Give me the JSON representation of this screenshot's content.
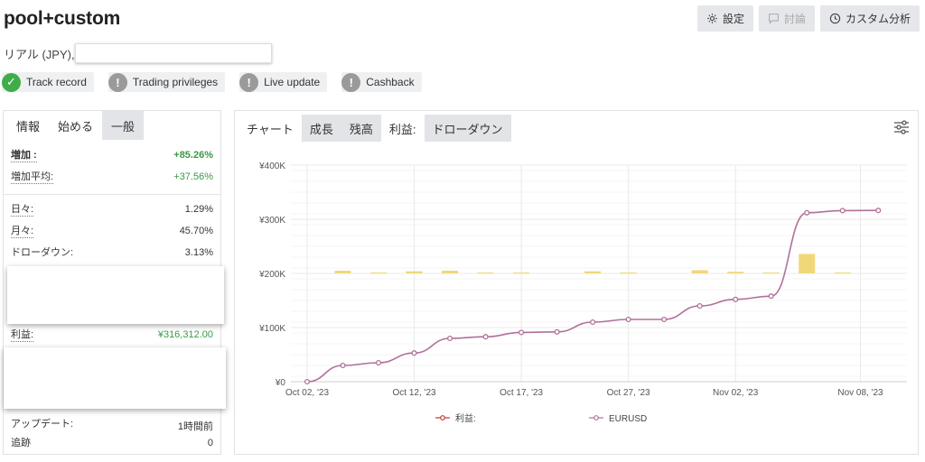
{
  "header": {
    "title": "pool+custom",
    "account_label": "リアル (JPY),",
    "buttons": [
      {
        "label": "設定",
        "icon": "gear-icon"
      },
      {
        "label": "討論",
        "icon": "comment-icon"
      },
      {
        "label": "カスタム分析",
        "icon": "clock-icon"
      }
    ]
  },
  "badges": [
    {
      "label": "Track record",
      "status": "ok"
    },
    {
      "label": "Trading privileges",
      "status": "warn"
    },
    {
      "label": "Live update",
      "status": "warn"
    },
    {
      "label": "Cashback",
      "status": "warn"
    }
  ],
  "left_panel": {
    "tabs": [
      "情報",
      "始める",
      "一般"
    ],
    "stats": {
      "gain": {
        "label": "増加 :",
        "value": "+85.26%"
      },
      "avg_gain": {
        "label": "増加平均:",
        "value": "+37.56%"
      },
      "daily": {
        "label": "日々:",
        "value": "1.29%"
      },
      "monthly": {
        "label": "月々:",
        "value": "45.70%"
      },
      "drawdown": {
        "label": "ドローダウン:",
        "value": "3.13%"
      },
      "profit": {
        "label": "利益:",
        "value": "¥316,312.00"
      },
      "updated": {
        "label": "アップデート:",
        "value": "1時間前"
      },
      "tracking": {
        "label": "追跡",
        "value": "0"
      }
    }
  },
  "chart_panel": {
    "tabs": [
      "チャート",
      "成長",
      "残高",
      "利益:",
      "ドローダウン"
    ]
  },
  "colors": {
    "line": "#b0709a",
    "bar": "#f2d77a",
    "green": "#3a9a44",
    "badge_ok": "#3fae49",
    "badge_warn": "#9a9a9a"
  },
  "chart_data": {
    "type": "line",
    "y_tick_labels": [
      "¥0",
      "¥100K",
      "¥200K",
      "¥300K",
      "¥400K"
    ],
    "ylim": [
      0,
      400000
    ],
    "x_tick_labels": [
      "Oct 02, '23",
      "Oct 12, '23",
      "Oct 17, '23",
      "Oct 27, '23",
      "Nov 02, '23",
      "Nov 08, '23"
    ],
    "legend": [
      "利益:",
      "EURUSD"
    ],
    "series_line": [
      {
        "x": 0,
        "y": 0
      },
      {
        "x": 1,
        "y": 30000
      },
      {
        "x": 2,
        "y": 35000
      },
      {
        "x": 3,
        "y": 53000
      },
      {
        "x": 4,
        "y": 80000
      },
      {
        "x": 5,
        "y": 83000
      },
      {
        "x": 6,
        "y": 91000
      },
      {
        "x": 7,
        "y": 92000
      },
      {
        "x": 8,
        "y": 110000
      },
      {
        "x": 9,
        "y": 115000
      },
      {
        "x": 10,
        "y": 115000
      },
      {
        "x": 11,
        "y": 140000
      },
      {
        "x": 12,
        "y": 152000
      },
      {
        "x": 13,
        "y": 158000
      },
      {
        "x": 14,
        "y": 312000
      },
      {
        "x": 15,
        "y": 316000
      },
      {
        "x": 16,
        "y": 316312
      }
    ],
    "series_bars": [
      {
        "x": 1,
        "y": 5000
      },
      {
        "x": 2,
        "y": 1000
      },
      {
        "x": 3,
        "y": 4000
      },
      {
        "x": 4,
        "y": 5000
      },
      {
        "x": 5,
        "y": 1000
      },
      {
        "x": 6,
        "y": 1000
      },
      {
        "x": 8,
        "y": 4000
      },
      {
        "x": 9,
        "y": 1000
      },
      {
        "x": 11,
        "y": 6000
      },
      {
        "x": 12,
        "y": 3000
      },
      {
        "x": 13,
        "y": 1000
      },
      {
        "x": 14,
        "y": 36000
      },
      {
        "x": 15,
        "y": 1000
      }
    ]
  }
}
